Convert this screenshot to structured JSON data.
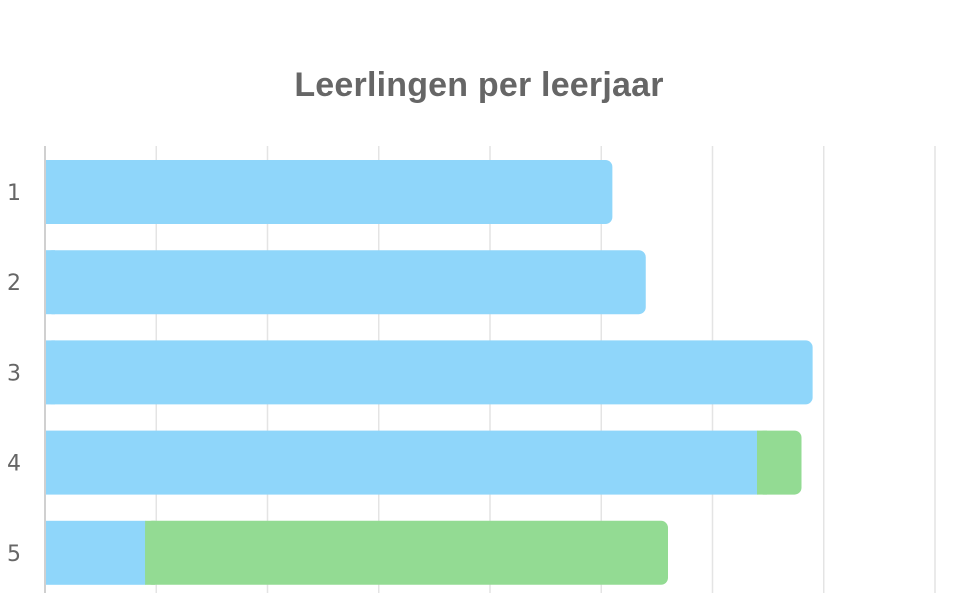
{
  "chart_data": {
    "type": "bar",
    "orientation": "horizontal",
    "stacked": true,
    "title": "Leerlingen per leerjaar",
    "xlabel": "",
    "ylabel": "",
    "categories": [
      "1",
      "2",
      "3",
      "4",
      "5"
    ],
    "series": [
      {
        "color": "#8fd6fa",
        "values": [
          51,
          54,
          69,
          64,
          9
        ]
      },
      {
        "color": "#93db93",
        "values": [
          0,
          0,
          0,
          4,
          47
        ]
      }
    ],
    "xlim": [
      0,
      80
    ],
    "grid": true,
    "legend": "none"
  }
}
